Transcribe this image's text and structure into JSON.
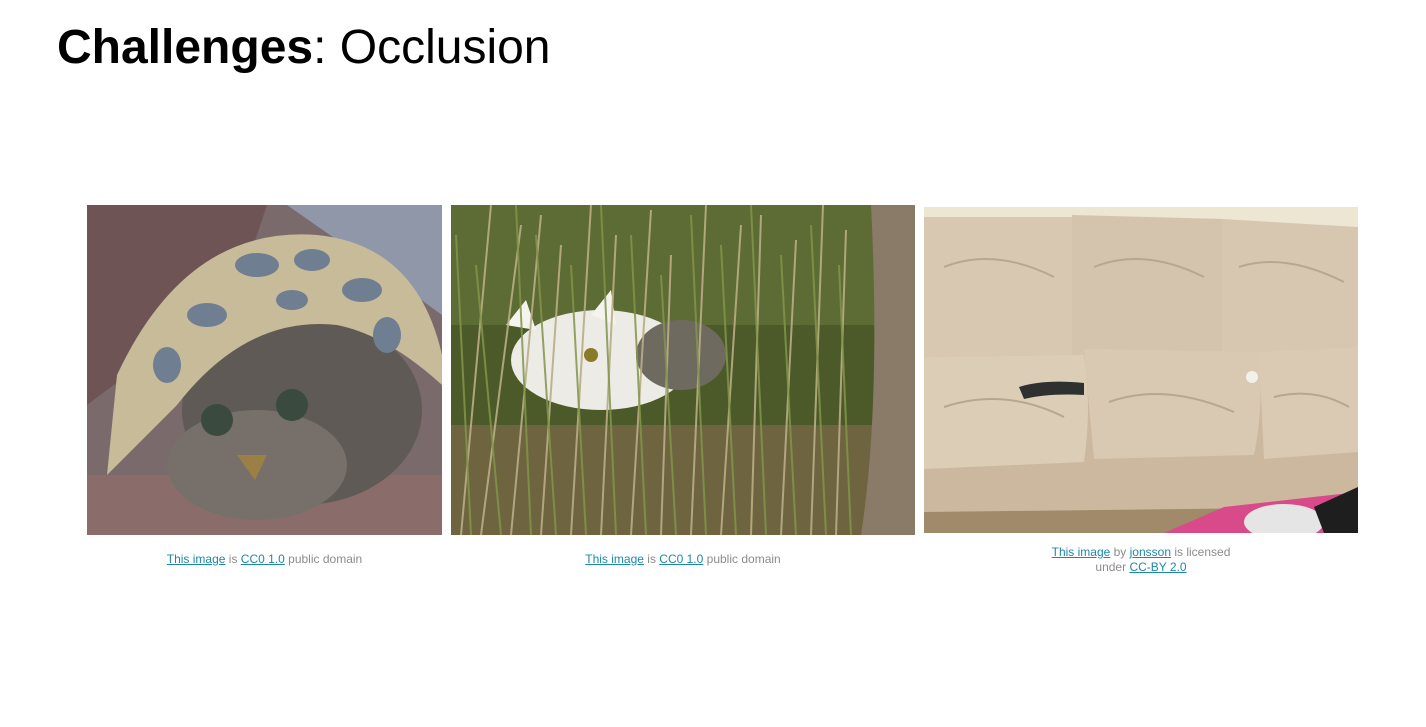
{
  "slide": {
    "title_bold": "Challenges",
    "title_rest": ": Occlusion"
  },
  "photos": [
    {
      "icon": "cat-under-blanket-photo",
      "caption": {
        "link1": "This image",
        "t1": " is ",
        "link2": "CC0 1.0",
        "t2": " public domain"
      }
    },
    {
      "icon": "cat-in-tall-grass-photo",
      "caption": {
        "link1": "This image",
        "t1": " is ",
        "link2": "CC0 1.0",
        "t2": " public domain"
      }
    },
    {
      "icon": "cat-tail-under-couch-cushion-photo",
      "caption": {
        "link1": "This image",
        "t1": " by ",
        "link2": "jonsson",
        "t2": " is licensed",
        "t3": "under ",
        "link3": "CC-BY 2.0"
      }
    }
  ],
  "colors": {
    "link": "#1e88a8",
    "caption_text": "#8c8c8c"
  }
}
